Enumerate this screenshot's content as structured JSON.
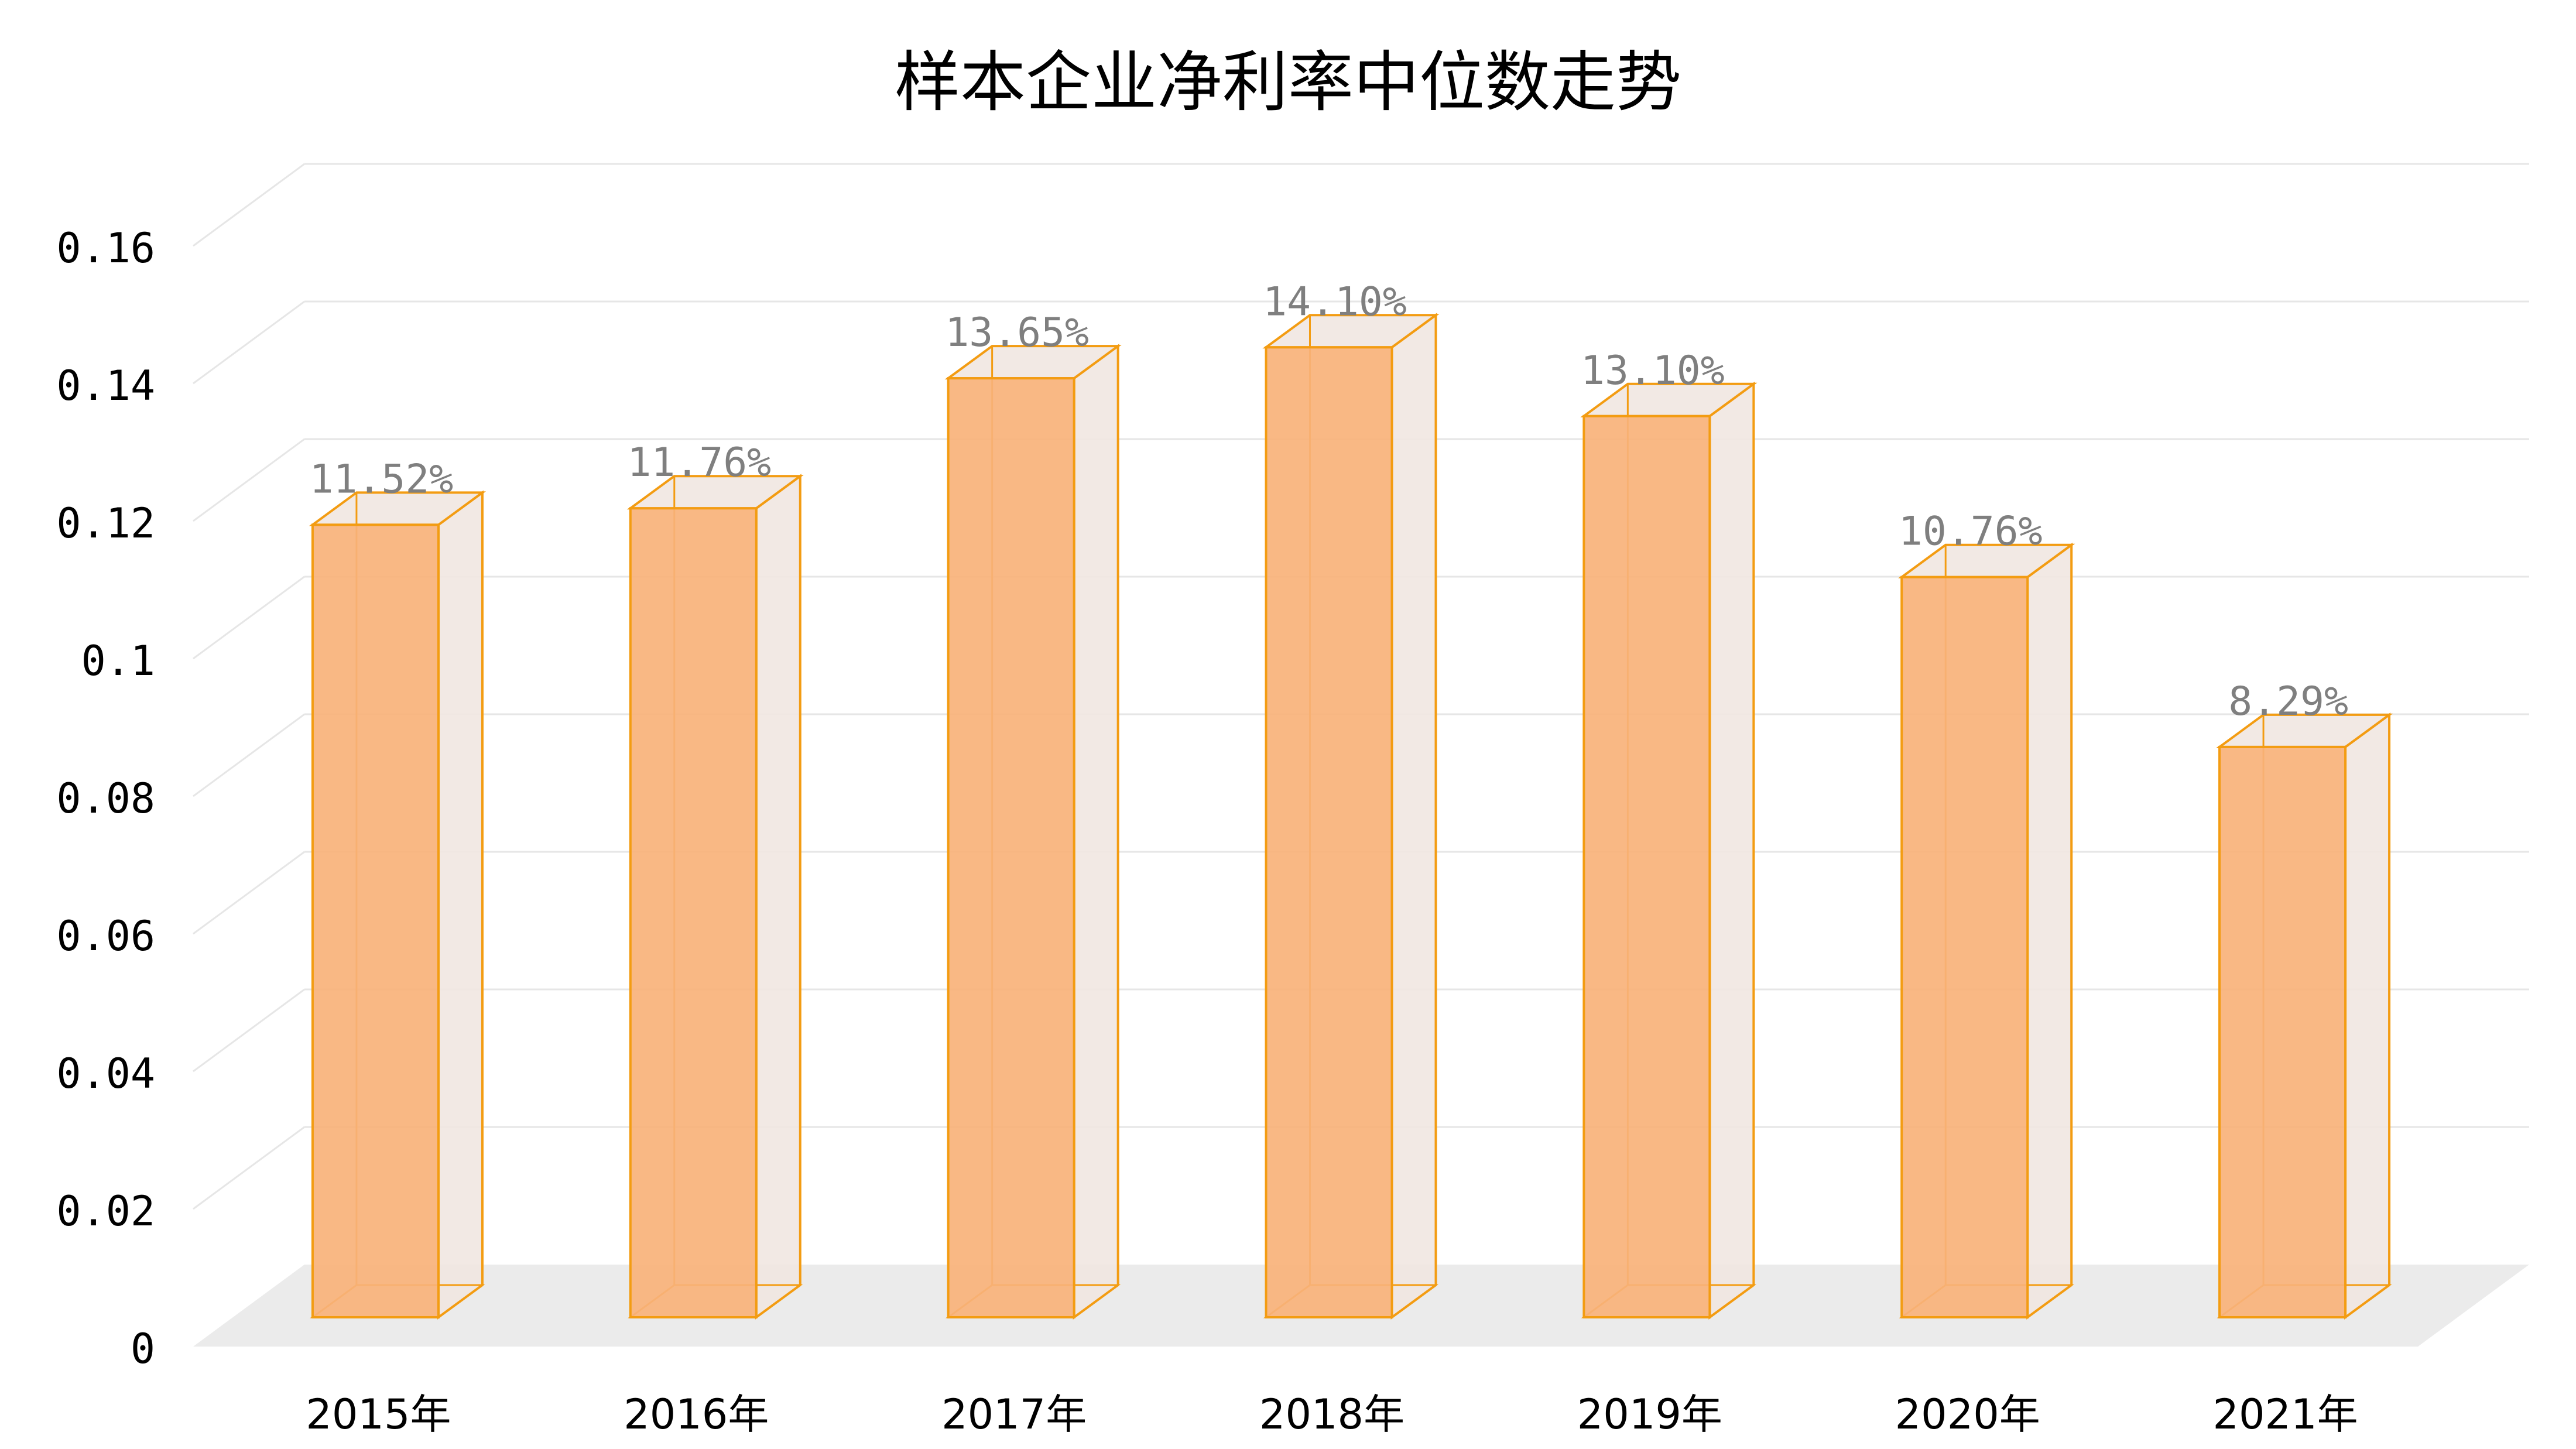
{
  "chart_data": {
    "type": "bar",
    "title": "样本企业净利率中位数走势",
    "xlabel": "",
    "ylabel": "",
    "categories": [
      "2015年",
      "2016年",
      "2017年",
      "2018年",
      "2019年",
      "2020年",
      "2021年"
    ],
    "values": [
      0.1152,
      0.1176,
      0.1365,
      0.141,
      0.131,
      0.1076,
      0.0829
    ],
    "data_labels": [
      "11.52%",
      "11.76%",
      "13.65%",
      "14.10%",
      "13.10%",
      "10.76%",
      "8.29%"
    ],
    "ylim": [
      0,
      0.16
    ],
    "yticks": [
      "0",
      "0.02",
      "0.04",
      "0.06",
      "0.08",
      "0.1",
      "0.12",
      "0.14",
      "0.16"
    ],
    "grid": true,
    "style": "3d-column",
    "colors": {
      "bar_front": "#F8B27A",
      "bar_edge": "#F39C12",
      "bar_side": "#F1E7E1",
      "floor": "#EBEBEB",
      "gridline": "#E6E6E6",
      "data_label": "#7F7F7F",
      "axis_text": "#000000"
    }
  }
}
